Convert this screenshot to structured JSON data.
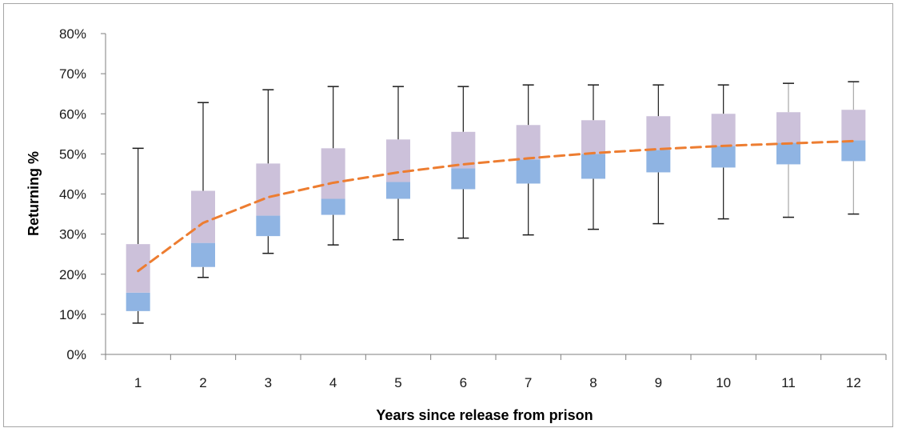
{
  "chart_data": {
    "type": "box",
    "xlabel": "Years since release from prison",
    "ylabel": "Returning %",
    "ylim": [
      0,
      80
    ],
    "y_ticks": [
      "0%",
      "10%",
      "20%",
      "30%",
      "40%",
      "50%",
      "60%",
      "70%",
      "80%"
    ],
    "categories": [
      "1",
      "2",
      "3",
      "4",
      "5",
      "6",
      "7",
      "8",
      "9",
      "10",
      "11",
      "12"
    ],
    "boxes": [
      {
        "x": "1",
        "min": 7.8,
        "q1": 10.8,
        "median": 15.4,
        "q3": 27.5,
        "max": 51.4
      },
      {
        "x": "2",
        "min": 19.2,
        "q1": 21.8,
        "median": 27.8,
        "q3": 40.8,
        "max": 62.8
      },
      {
        "x": "3",
        "min": 25.2,
        "q1": 29.5,
        "median": 34.6,
        "q3": 47.6,
        "max": 66.0
      },
      {
        "x": "4",
        "min": 27.3,
        "q1": 34.8,
        "median": 38.8,
        "q3": 51.4,
        "max": 66.8
      },
      {
        "x": "5",
        "min": 28.6,
        "q1": 38.8,
        "median": 43.0,
        "q3": 53.6,
        "max": 66.8
      },
      {
        "x": "6",
        "min": 29.0,
        "q1": 41.2,
        "median": 46.4,
        "q3": 55.5,
        "max": 66.8
      },
      {
        "x": "7",
        "min": 29.8,
        "q1": 42.6,
        "median": 48.6,
        "q3": 57.2,
        "max": 67.2
      },
      {
        "x": "8",
        "min": 31.2,
        "q1": 43.8,
        "median": 50.0,
        "q3": 58.4,
        "max": 67.2
      },
      {
        "x": "9",
        "min": 32.6,
        "q1": 45.4,
        "median": 51.0,
        "q3": 59.4,
        "max": 67.2
      },
      {
        "x": "10",
        "min": 33.8,
        "q1": 46.6,
        "median": 52.0,
        "q3": 60.0,
        "max": 67.2
      },
      {
        "x": "11",
        "min": 34.2,
        "q1": 47.4,
        "median": 52.8,
        "q3": 60.4,
        "max": 67.6
      },
      {
        "x": "12",
        "min": 35.0,
        "q1": 48.2,
        "median": 53.4,
        "q3": 61.0,
        "max": 68.0
      }
    ],
    "trend_line": {
      "style": "dashed",
      "color": "#ed7d31",
      "values": [
        20.8,
        32.8,
        39.2,
        42.8,
        45.4,
        47.4,
        48.9,
        50.2,
        51.2,
        52.0,
        52.6,
        53.2
      ]
    },
    "colors": {
      "lower_box": "#8fb4e3",
      "upper_box": "#ccc1da",
      "whisker": "#1a1a1a",
      "whisker_light": "#a6a6a6",
      "axis": "#7f7f7f",
      "trend": "#ed7d31"
    },
    "grid": false,
    "legend": "none"
  }
}
